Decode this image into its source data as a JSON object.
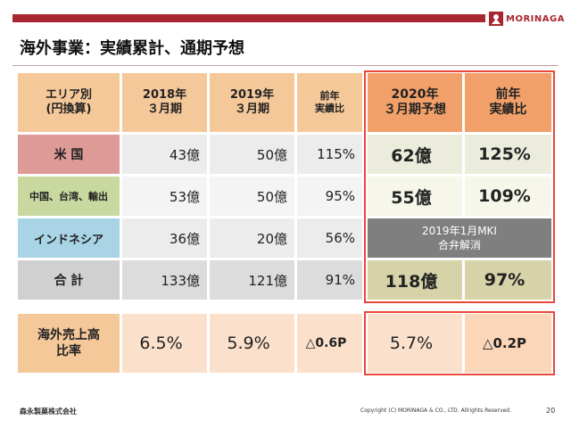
{
  "brand": {
    "logo_text": "MORINAGA",
    "footer_logo": "森永製菓株式会社"
  },
  "title": "海外事業：実績累計、通期予想",
  "headers": {
    "area": "エリア別\n(円換算)",
    "fy2018": "2018年\n３月期",
    "fy2019": "2019年\n３月期",
    "yoy_actual": "前年\n実績比",
    "fy2020_forecast": "2020年\n３月期予想",
    "yoy_forecast": "前年\n実績比"
  },
  "rows": [
    {
      "name": "米 国",
      "fy2018": "43億",
      "fy2019": "50億",
      "ratio": "115%",
      "forecast": "62億",
      "forecast_ratio": "125%",
      "color": "#de9a96"
    },
    {
      "name": "中国、台湾、輸出",
      "fy2018": "53億",
      "fy2019": "50億",
      "ratio": "95%",
      "forecast": "55億",
      "forecast_ratio": "109%",
      "color": "#c9d89f"
    },
    {
      "name": "インドネシア",
      "fy2018": "36億",
      "fy2019": "20億",
      "ratio": "56%",
      "note": "2019年1月MKI\n合弁解消",
      "color": "#a8d4e6"
    },
    {
      "name": "合 計",
      "fy2018": "133億",
      "fy2019": "121億",
      "ratio": "91%",
      "forecast": "118億",
      "forecast_ratio": "97%",
      "color": "#d0d0d0"
    }
  ],
  "ratio_row": {
    "label": "海外売上高\n比率",
    "fy2018": "6.5%",
    "fy2019": "5.9%",
    "change": "△0.6P",
    "forecast": "5.7%",
    "forecast_change": "△0.2P"
  },
  "footer": {
    "copyright": "Copyright (C) MORINAGA & CO., LTD. Allrights Reserved.",
    "page": "20"
  },
  "colors": {
    "accent": "#a8262f",
    "header": "#f5c89a",
    "header_dark": "#f2a06a",
    "highlight": "#e8473a"
  }
}
